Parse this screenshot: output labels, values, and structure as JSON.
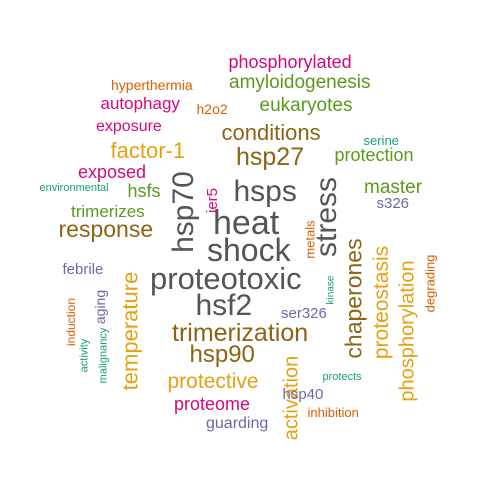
{
  "colors": {
    "background": "#ffffff",
    "gray": "#555555",
    "brown": "#8c6414",
    "gold": "#e6a010",
    "magenta": "#d6087a",
    "green": "#5a9a1e",
    "orange": "#d95f02",
    "purple": "#6b68a8",
    "teal": "#1b9e77"
  },
  "words": [
    {
      "text": "heat",
      "color": "gray",
      "rotated": false
    },
    {
      "text": "shock",
      "color": "gray",
      "rotated": false
    },
    {
      "text": "proteotoxic",
      "color": "gray",
      "rotated": false
    },
    {
      "text": "hsps",
      "color": "gray",
      "rotated": false
    },
    {
      "text": "hsf2",
      "color": "gray",
      "rotated": false
    },
    {
      "text": "hsp70",
      "color": "gray",
      "rotated": true
    },
    {
      "text": "stress",
      "color": "gray",
      "rotated": true
    },
    {
      "text": "hsp27",
      "color": "brown",
      "rotated": false
    },
    {
      "text": "trimerization",
      "color": "brown",
      "rotated": false
    },
    {
      "text": "hsp90",
      "color": "brown",
      "rotated": false
    },
    {
      "text": "response",
      "color": "brown",
      "rotated": false
    },
    {
      "text": "conditions",
      "color": "brown",
      "rotated": false
    },
    {
      "text": "chaperones",
      "color": "brown",
      "rotated": true
    },
    {
      "text": "factor-1",
      "color": "gold",
      "rotated": false
    },
    {
      "text": "temperature",
      "color": "gold",
      "rotated": true
    },
    {
      "text": "protective",
      "color": "gold",
      "rotated": false
    },
    {
      "text": "proteostasis",
      "color": "gold",
      "rotated": true
    },
    {
      "text": "phosphorylation",
      "color": "gold",
      "rotated": true
    },
    {
      "text": "activation",
      "color": "gold",
      "rotated": true
    },
    {
      "text": "proteome",
      "color": "magenta",
      "rotated": false
    },
    {
      "text": "exposed",
      "color": "magenta",
      "rotated": false
    },
    {
      "text": "phosphorylated",
      "color": "magenta",
      "rotated": false
    },
    {
      "text": "autophagy",
      "color": "magenta",
      "rotated": false
    },
    {
      "text": "exposure",
      "color": "magenta",
      "rotated": false
    },
    {
      "text": "ier5",
      "color": "magenta",
      "rotated": true
    },
    {
      "text": "amyloidogenesis",
      "color": "green",
      "rotated": false
    },
    {
      "text": "eukaryotes",
      "color": "green",
      "rotated": false
    },
    {
      "text": "protection",
      "color": "green",
      "rotated": false
    },
    {
      "text": "master",
      "color": "green",
      "rotated": false
    },
    {
      "text": "hsfs",
      "color": "green",
      "rotated": false
    },
    {
      "text": "trimerizes",
      "color": "green",
      "rotated": false
    },
    {
      "text": "hyperthermia",
      "color": "orange",
      "rotated": false
    },
    {
      "text": "h2o2",
      "color": "orange",
      "rotated": false
    },
    {
      "text": "metals",
      "color": "orange",
      "rotated": true
    },
    {
      "text": "degrading",
      "color": "orange",
      "rotated": true
    },
    {
      "text": "induction",
      "color": "orange",
      "rotated": true
    },
    {
      "text": "inhibition",
      "color": "orange",
      "rotated": false
    },
    {
      "text": "s326",
      "color": "purple",
      "rotated": false
    },
    {
      "text": "febrile",
      "color": "purple",
      "rotated": false
    },
    {
      "text": "aging",
      "color": "purple",
      "rotated": true
    },
    {
      "text": "ser326",
      "color": "purple",
      "rotated": false
    },
    {
      "text": "hsp40",
      "color": "purple",
      "rotated": false
    },
    {
      "text": "guarding",
      "color": "purple",
      "rotated": false
    },
    {
      "text": "serine",
      "color": "teal",
      "rotated": false
    },
    {
      "text": "environmental",
      "color": "teal",
      "rotated": false
    },
    {
      "text": "kinase",
      "color": "teal",
      "rotated": true
    },
    {
      "text": "protects",
      "color": "teal",
      "rotated": false
    },
    {
      "text": "activity",
      "color": "teal",
      "rotated": true
    },
    {
      "text": "malignancy",
      "color": "teal",
      "rotated": true
    }
  ]
}
